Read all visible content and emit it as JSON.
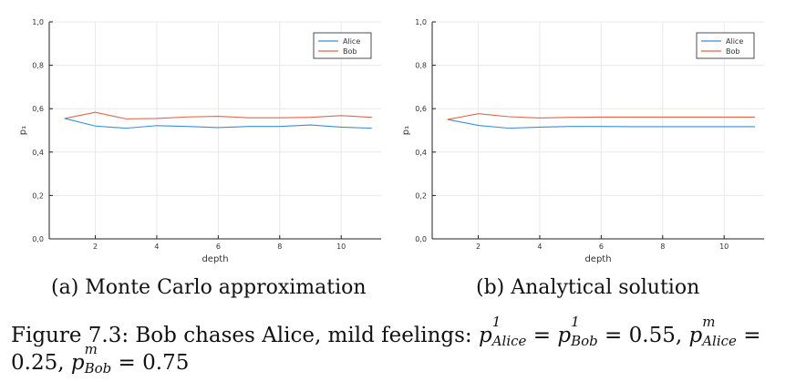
{
  "chart_data": [
    {
      "type": "line",
      "x": [
        1,
        2,
        3,
        4,
        5,
        6,
        7,
        8,
        9,
        10,
        11
      ],
      "series": [
        {
          "name": "Alice",
          "color": "#3a8fd8",
          "values": [
            0.555,
            0.52,
            0.51,
            0.522,
            0.518,
            0.513,
            0.518,
            0.518,
            0.525,
            0.515,
            0.51
          ]
        },
        {
          "name": "Bob",
          "color": "#e0664a",
          "values": [
            0.555,
            0.583,
            0.553,
            0.555,
            0.562,
            0.565,
            0.558,
            0.558,
            0.56,
            0.568,
            0.56
          ]
        }
      ],
      "xlabel": "depth",
      "ylabel": "p₁",
      "xlim": [
        0.5,
        11.3
      ],
      "ylim": [
        0,
        1
      ],
      "xticks": [
        2,
        4,
        6,
        8,
        10
      ],
      "yticks": [
        "0,0",
        "0,2",
        "0,4",
        "0,6",
        "0,8",
        "1,0"
      ],
      "grid": true,
      "legend": "top-right",
      "caption": "(a) Monte Carlo approximation"
    },
    {
      "type": "line",
      "x": [
        1,
        2,
        3,
        4,
        5,
        6,
        7,
        8,
        9,
        10,
        11
      ],
      "series": [
        {
          "name": "Alice",
          "color": "#3a8fd8",
          "values": [
            0.55,
            0.523,
            0.51,
            0.515,
            0.518,
            0.518,
            0.517,
            0.517,
            0.517,
            0.517,
            0.517
          ]
        },
        {
          "name": "Bob",
          "color": "#e0664a",
          "values": [
            0.55,
            0.577,
            0.563,
            0.557,
            0.56,
            0.561,
            0.561,
            0.561,
            0.561,
            0.561,
            0.561
          ]
        }
      ],
      "xlabel": "depth",
      "ylabel": "p₁",
      "xlim": [
        0.5,
        11.3
      ],
      "ylim": [
        0,
        1
      ],
      "xticks": [
        2,
        4,
        6,
        8,
        10
      ],
      "yticks": [
        "0,0",
        "0,2",
        "0,4",
        "0,6",
        "0,8",
        "1,0"
      ],
      "grid": true,
      "legend": "top-right",
      "caption": "(b) Analytical solution"
    }
  ],
  "figure_caption": {
    "prefix": "Figure 7.3: Bob chases Alice, mild feelings: ",
    "p": "p",
    "sup1": "1",
    "supm": "m",
    "alice": "Alice",
    "bob": "Bob",
    "eq": " = ",
    "v055": "0.55",
    "comma": ", ",
    "v025": "0.25",
    "v075": "0.75"
  }
}
